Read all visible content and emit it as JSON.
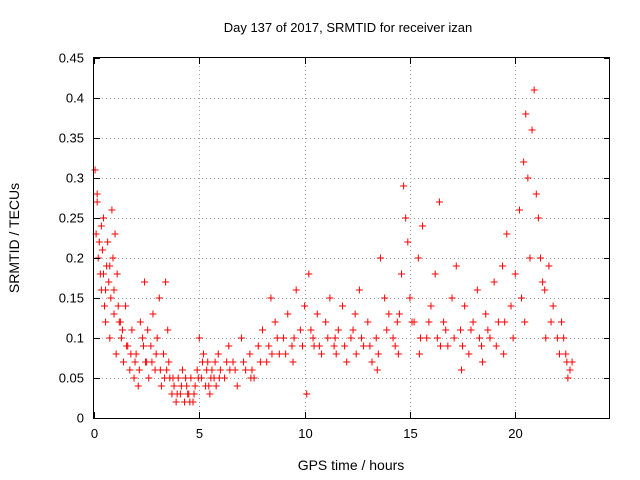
{
  "chart_data": {
    "type": "scatter",
    "title": "Day 137 of 2017, SRMTID for receiver izan",
    "xlabel": "GPS time / hours",
    "ylabel": "SRMTID / TECUs",
    "xlim": [
      0,
      24.5
    ],
    "ylim": [
      0,
      0.45
    ],
    "x_ticks": [
      "0",
      "5",
      "10",
      "15",
      "20"
    ],
    "y_ticks": [
      "0",
      "0.05",
      "0.1",
      "0.15",
      "0.2",
      "0.25",
      "0.3",
      "0.35",
      "0.4",
      "0.45"
    ],
    "grid": true,
    "marker": "+",
    "color": "#ff0000",
    "series": [
      {
        "name": "SRMTID",
        "points": [
          [
            0.05,
            0.31
          ],
          [
            0.1,
            0.23
          ],
          [
            0.15,
            0.28
          ],
          [
            0.2,
            0.2
          ],
          [
            0.25,
            0.22
          ],
          [
            0.3,
            0.18
          ],
          [
            0.35,
            0.16
          ],
          [
            0.4,
            0.21
          ],
          [
            0.45,
            0.25
          ],
          [
            0.5,
            0.14
          ],
          [
            0.55,
            0.12
          ],
          [
            0.6,
            0.19
          ],
          [
            0.65,
            0.22
          ],
          [
            0.7,
            0.17
          ],
          [
            0.75,
            0.1
          ],
          [
            0.8,
            0.15
          ],
          [
            0.85,
            0.26
          ],
          [
            0.9,
            0.2
          ],
          [
            0.95,
            0.13
          ],
          [
            1.0,
            0.23
          ],
          [
            1.05,
            0.08
          ],
          [
            1.1,
            0.18
          ],
          [
            1.2,
            0.12
          ],
          [
            1.3,
            0.1
          ],
          [
            1.4,
            0.07
          ],
          [
            1.5,
            0.14
          ],
          [
            1.6,
            0.09
          ],
          [
            1.7,
            0.06
          ],
          [
            1.8,
            0.11
          ],
          [
            1.9,
            0.05
          ],
          [
            2.0,
            0.08
          ],
          [
            2.1,
            0.04
          ],
          [
            2.2,
            0.12
          ],
          [
            2.3,
            0.1
          ],
          [
            2.4,
            0.17
          ],
          [
            2.5,
            0.07
          ],
          [
            2.6,
            0.05
          ],
          [
            2.7,
            0.09
          ],
          [
            2.8,
            0.13
          ],
          [
            2.9,
            0.06
          ],
          [
            3.0,
            0.1
          ],
          [
            3.1,
            0.15
          ],
          [
            3.2,
            0.04
          ],
          [
            3.3,
            0.08
          ],
          [
            3.4,
            0.17
          ],
          [
            3.5,
            0.11
          ],
          [
            3.6,
            0.05
          ],
          [
            3.7,
            0.03
          ],
          [
            3.8,
            0.04
          ],
          [
            3.9,
            0.02
          ],
          [
            4.0,
            0.05
          ],
          [
            4.1,
            0.03
          ],
          [
            4.2,
            0.06
          ],
          [
            4.3,
            0.02
          ],
          [
            4.4,
            0.04
          ],
          [
            4.5,
            0.03
          ],
          [
            4.6,
            0.05
          ],
          [
            4.7,
            0.02
          ],
          [
            4.8,
            0.04
          ],
          [
            4.9,
            0.06
          ],
          [
            5.0,
            0.1
          ],
          [
            5.1,
            0.05
          ],
          [
            5.2,
            0.08
          ],
          [
            5.3,
            0.04
          ],
          [
            5.4,
            0.07
          ],
          [
            5.5,
            0.03
          ],
          [
            5.6,
            0.06
          ],
          [
            5.7,
            0.05
          ],
          [
            5.8,
            0.04
          ],
          [
            5.9,
            0.08
          ],
          [
            6.0,
            0.06
          ],
          [
            6.2,
            0.05
          ],
          [
            6.4,
            0.09
          ],
          [
            6.6,
            0.07
          ],
          [
            6.8,
            0.04
          ],
          [
            7.0,
            0.1
          ],
          [
            7.2,
            0.06
          ],
          [
            7.4,
            0.08
          ],
          [
            7.6,
            0.05
          ],
          [
            7.8,
            0.09
          ],
          [
            8.0,
            0.11
          ],
          [
            8.2,
            0.07
          ],
          [
            8.4,
            0.15
          ],
          [
            8.6,
            0.12
          ],
          [
            8.8,
            0.08
          ],
          [
            9.0,
            0.1
          ],
          [
            9.2,
            0.13
          ],
          [
            9.4,
            0.09
          ],
          [
            9.6,
            0.16
          ],
          [
            9.8,
            0.11
          ],
          [
            10.0,
            0.14
          ],
          [
            10.1,
            0.03
          ],
          [
            10.2,
            0.18
          ],
          [
            10.4,
            0.1
          ],
          [
            10.6,
            0.13
          ],
          [
            10.8,
            0.08
          ],
          [
            11.0,
            0.12
          ],
          [
            11.2,
            0.15
          ],
          [
            11.4,
            0.09
          ],
          [
            11.6,
            0.11
          ],
          [
            11.8,
            0.14
          ],
          [
            12.0,
            0.07
          ],
          [
            12.2,
            0.1
          ],
          [
            12.4,
            0.13
          ],
          [
            12.6,
            0.16
          ],
          [
            12.8,
            0.09
          ],
          [
            13.0,
            0.12
          ],
          [
            13.2,
            0.07
          ],
          [
            13.4,
            0.1
          ],
          [
            13.6,
            0.2
          ],
          [
            13.8,
            0.15
          ],
          [
            14.0,
            0.13
          ],
          [
            14.2,
            0.1
          ],
          [
            14.4,
            0.12
          ],
          [
            14.6,
            0.18
          ],
          [
            14.7,
            0.29
          ],
          [
            14.8,
            0.25
          ],
          [
            14.9,
            0.22
          ],
          [
            15.0,
            0.15
          ],
          [
            15.2,
            0.12
          ],
          [
            15.4,
            0.2
          ],
          [
            15.6,
            0.24
          ],
          [
            15.8,
            0.1
          ],
          [
            16.0,
            0.14
          ],
          [
            16.2,
            0.18
          ],
          [
            16.4,
            0.27
          ],
          [
            16.6,
            0.12
          ],
          [
            16.8,
            0.09
          ],
          [
            17.0,
            0.15
          ],
          [
            17.2,
            0.19
          ],
          [
            17.4,
            0.11
          ],
          [
            17.6,
            0.14
          ],
          [
            17.8,
            0.08
          ],
          [
            18.0,
            0.12
          ],
          [
            18.2,
            0.16
          ],
          [
            18.4,
            0.09
          ],
          [
            18.6,
            0.13
          ],
          [
            18.8,
            0.1
          ],
          [
            19.0,
            0.17
          ],
          [
            19.2,
            0.12
          ],
          [
            19.4,
            0.19
          ],
          [
            19.6,
            0.23
          ],
          [
            19.8,
            0.14
          ],
          [
            20.0,
            0.18
          ],
          [
            20.2,
            0.26
          ],
          [
            20.4,
            0.32
          ],
          [
            20.5,
            0.38
          ],
          [
            20.6,
            0.3
          ],
          [
            20.8,
            0.36
          ],
          [
            20.9,
            0.41
          ],
          [
            21.0,
            0.28
          ],
          [
            21.1,
            0.25
          ],
          [
            21.2,
            0.2
          ],
          [
            21.4,
            0.16
          ],
          [
            21.6,
            0.19
          ],
          [
            21.8,
            0.14
          ],
          [
            22.0,
            0.1
          ],
          [
            22.2,
            0.12
          ],
          [
            22.4,
            0.08
          ],
          [
            22.6,
            0.06
          ],
          [
            0.15,
            0.27
          ],
          [
            0.35,
            0.24
          ],
          [
            0.55,
            0.16
          ],
          [
            0.75,
            0.19
          ],
          [
            0.95,
            0.16
          ],
          [
            1.15,
            0.14
          ],
          [
            1.35,
            0.11
          ],
          [
            1.55,
            0.09
          ],
          [
            1.75,
            0.08
          ],
          [
            1.95,
            0.07
          ],
          [
            2.15,
            0.06
          ],
          [
            2.35,
            0.09
          ],
          [
            2.55,
            0.11
          ],
          [
            2.75,
            0.07
          ],
          [
            2.95,
            0.08
          ],
          [
            3.15,
            0.06
          ],
          [
            3.35,
            0.05
          ],
          [
            3.55,
            0.07
          ],
          [
            3.75,
            0.05
          ],
          [
            3.95,
            0.03
          ],
          [
            4.15,
            0.04
          ],
          [
            4.35,
            0.05
          ],
          [
            4.55,
            0.02
          ],
          [
            4.75,
            0.03
          ],
          [
            4.95,
            0.05
          ],
          [
            5.15,
            0.07
          ],
          [
            5.35,
            0.06
          ],
          [
            5.55,
            0.05
          ],
          [
            5.75,
            0.07
          ],
          [
            5.95,
            0.05
          ],
          [
            6.3,
            0.07
          ],
          [
            6.7,
            0.06
          ],
          [
            7.1,
            0.07
          ],
          [
            7.5,
            0.06
          ],
          [
            7.9,
            0.07
          ],
          [
            8.3,
            0.09
          ],
          [
            8.7,
            0.1
          ],
          [
            9.1,
            0.08
          ],
          [
            9.5,
            0.1
          ],
          [
            9.9,
            0.09
          ],
          [
            10.3,
            0.11
          ],
          [
            10.7,
            0.09
          ],
          [
            11.1,
            0.1
          ],
          [
            11.5,
            0.08
          ],
          [
            11.9,
            0.09
          ],
          [
            12.3,
            0.11
          ],
          [
            12.7,
            0.1
          ],
          [
            13.1,
            0.09
          ],
          [
            13.5,
            0.08
          ],
          [
            13.9,
            0.11
          ],
          [
            14.3,
            0.09
          ],
          [
            14.5,
            0.13
          ],
          [
            15.1,
            0.12
          ],
          [
            15.5,
            0.1
          ],
          [
            15.9,
            0.12
          ],
          [
            16.3,
            0.1
          ],
          [
            16.7,
            0.11
          ],
          [
            17.1,
            0.1
          ],
          [
            17.5,
            0.09
          ],
          [
            17.9,
            0.11
          ],
          [
            18.3,
            0.1
          ],
          [
            18.7,
            0.11
          ],
          [
            19.1,
            0.09
          ],
          [
            19.5,
            0.12
          ],
          [
            19.9,
            0.1
          ],
          [
            20.3,
            0.15
          ],
          [
            20.7,
            0.2
          ],
          [
            21.3,
            0.17
          ],
          [
            21.7,
            0.12
          ],
          [
            22.1,
            0.08
          ],
          [
            22.3,
            0.1
          ],
          [
            22.5,
            0.05
          ],
          [
            22.7,
            0.07
          ],
          [
            0.45,
            0.18
          ],
          [
            1.25,
            0.12
          ],
          [
            2.45,
            0.07
          ],
          [
            3.45,
            0.06
          ],
          [
            4.45,
            0.03
          ],
          [
            5.45,
            0.04
          ],
          [
            6.45,
            0.06
          ],
          [
            7.45,
            0.05
          ],
          [
            8.45,
            0.08
          ],
          [
            9.45,
            0.07
          ],
          [
            10.45,
            0.09
          ],
          [
            11.45,
            0.1
          ],
          [
            12.45,
            0.08
          ],
          [
            13.45,
            0.06
          ],
          [
            14.45,
            0.08
          ],
          [
            15.45,
            0.08
          ],
          [
            16.45,
            0.09
          ],
          [
            17.45,
            0.06
          ],
          [
            18.45,
            0.07
          ],
          [
            19.45,
            0.08
          ],
          [
            20.45,
            0.12
          ],
          [
            21.45,
            0.1
          ],
          [
            22.45,
            0.07
          ]
        ]
      }
    ]
  }
}
